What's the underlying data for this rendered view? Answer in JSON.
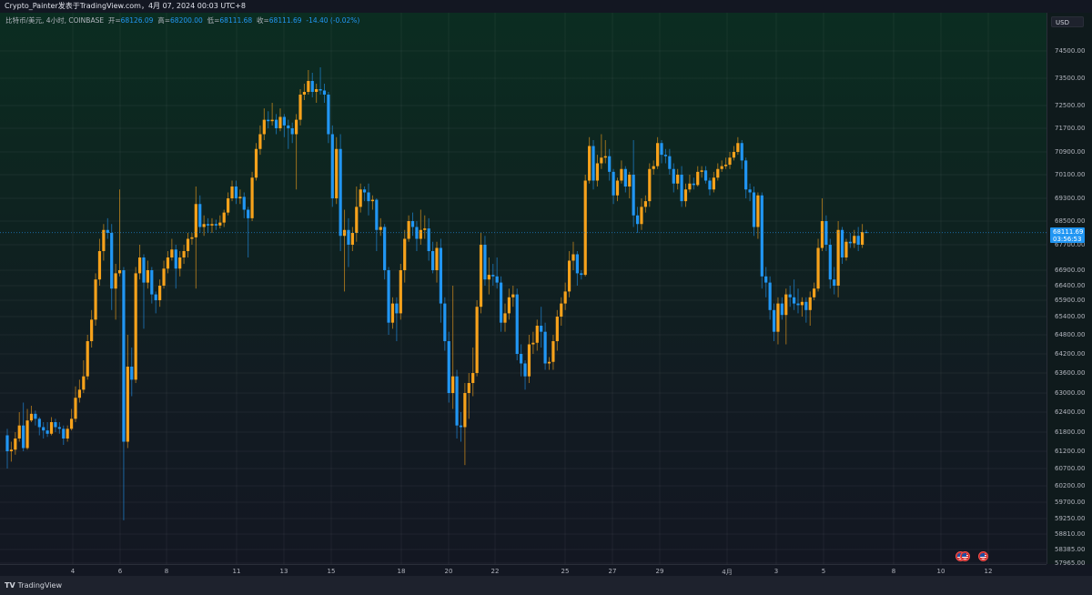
{
  "header": {
    "title": "Crypto_Painter发表于TradingView.com，4月 07, 2024 00:03 UTC+8"
  },
  "legend": {
    "symbol": "比特币/美元, 4小时, COINBASE",
    "open_label": "开=",
    "open": "68126.09",
    "high_label": "高=",
    "high": "68200.00",
    "low_label": "低=",
    "low": "68111.68",
    "close_label": "收=",
    "close": "68111.69",
    "change": "-14.40 (-0.02%)"
  },
  "price_axis": {
    "currency": "USD",
    "ticks": [
      "74500.00",
      "73500.00",
      "72500.00",
      "71700.00",
      "70900.00",
      "70100.00",
      "69300.00",
      "68500.00",
      "67700.00",
      "66900.00",
      "66400.00",
      "65900.00",
      "65400.00",
      "64800.00",
      "64200.00",
      "63600.00",
      "63000.00",
      "62400.00",
      "61800.00",
      "61200.00",
      "60700.00",
      "60200.00",
      "59700.00",
      "59250.00",
      "58810.00",
      "58385.00",
      "57965.00"
    ],
    "last_price": "68111.69",
    "countdown": "03:56:53"
  },
  "time_axis": {
    "ticks": [
      "4",
      "6",
      "8",
      "11",
      "13",
      "15",
      "18",
      "20",
      "22",
      "25",
      "27",
      "29",
      "4月",
      "3",
      "5",
      "8",
      "10",
      "12"
    ]
  },
  "events": [
    {
      "icon": "us-flag-icon"
    },
    {
      "icon": "us-flag-icon"
    }
  ],
  "footer": {
    "logo_mark": "TV",
    "logo_text": "TradingView"
  },
  "colors": {
    "up": "#f7a21b",
    "down": "#2196f3",
    "last_price": "#2196f3"
  },
  "chart_data": {
    "type": "candlestick",
    "interval": "4小时",
    "price_scale": "log-like",
    "grid": true,
    "candle_format": [
      "open",
      "high",
      "low",
      "close"
    ],
    "candles": [
      [
        61700,
        61900,
        60700,
        61200
      ],
      [
        61200,
        61500,
        60900,
        61250
      ],
      [
        61250,
        61800,
        61100,
        61600
      ],
      [
        61600,
        62400,
        61500,
        62000
      ],
      [
        62000,
        62700,
        61200,
        61300
      ],
      [
        61300,
        62500,
        61250,
        62150
      ],
      [
        62150,
        62600,
        62100,
        62350
      ],
      [
        62350,
        62450,
        62000,
        62200
      ],
      [
        62200,
        62250,
        61700,
        61950
      ],
      [
        61950,
        62100,
        61600,
        61850
      ],
      [
        61850,
        62100,
        61650,
        61750
      ],
      [
        61750,
        62250,
        61700,
        62100
      ],
      [
        62100,
        62200,
        61800,
        61950
      ],
      [
        61950,
        62100,
        61750,
        61900
      ],
      [
        61900,
        62000,
        61400,
        61600
      ],
      [
        61600,
        62000,
        61500,
        61900
      ],
      [
        61900,
        62500,
        61850,
        62200
      ],
      [
        62200,
        63200,
        62100,
        62850
      ],
      [
        62850,
        63400,
        62700,
        63100
      ],
      [
        63100,
        64000,
        63000,
        63500
      ],
      [
        63500,
        64800,
        63400,
        64600
      ],
      [
        64600,
        65600,
        64400,
        65300
      ],
      [
        65300,
        66800,
        65100,
        66600
      ],
      [
        66600,
        67900,
        66400,
        67500
      ],
      [
        67500,
        68400,
        67200,
        68200
      ],
      [
        68200,
        68600,
        67900,
        68100
      ],
      [
        68100,
        68400,
        65600,
        66300
      ],
      [
        66300,
        67100,
        65300,
        66800
      ],
      [
        66800,
        69600,
        66700,
        66900
      ],
      [
        66900,
        67000,
        59200,
        61500
      ],
      [
        61500,
        64800,
        61300,
        63800
      ],
      [
        63800,
        64400,
        62900,
        63400
      ],
      [
        63400,
        67000,
        63300,
        66800
      ],
      [
        66800,
        67700,
        66600,
        67300
      ],
      [
        67300,
        67400,
        65000,
        66500
      ],
      [
        66500,
        67200,
        66300,
        66900
      ],
      [
        66900,
        67000,
        65800,
        66100
      ],
      [
        66100,
        66200,
        65500,
        65900
      ],
      [
        65900,
        66600,
        65700,
        66400
      ],
      [
        66400,
        67200,
        66300,
        66950
      ],
      [
        66950,
        67500,
        66800,
        67300
      ],
      [
        67300,
        67900,
        67200,
        67550
      ],
      [
        67550,
        67700,
        66300,
        66950
      ],
      [
        66950,
        67500,
        66700,
        67300
      ],
      [
        67300,
        67700,
        67100,
        67500
      ],
      [
        67500,
        68100,
        67300,
        67900
      ],
      [
        67900,
        68100,
        67700,
        67950
      ],
      [
        67950,
        69700,
        66300,
        69100
      ],
      [
        69100,
        69400,
        68100,
        68300
      ],
      [
        68300,
        68700,
        68000,
        68400
      ],
      [
        68400,
        68600,
        68100,
        68350
      ],
      [
        68350,
        68600,
        68100,
        68400
      ],
      [
        68400,
        68550,
        68200,
        68350
      ],
      [
        68350,
        68700,
        68250,
        68450
      ],
      [
        68450,
        68900,
        68300,
        68800
      ],
      [
        68800,
        69500,
        68700,
        69300
      ],
      [
        69300,
        69900,
        69200,
        69700
      ],
      [
        69700,
        69900,
        69100,
        69300
      ],
      [
        69300,
        69600,
        69100,
        69350
      ],
      [
        69350,
        69500,
        68600,
        68900
      ],
      [
        68900,
        69000,
        67300,
        68600
      ],
      [
        68600,
        70200,
        68500,
        70000
      ],
      [
        70000,
        71200,
        69900,
        71000
      ],
      [
        71000,
        71800,
        70800,
        71500
      ],
      [
        71500,
        72400,
        71300,
        72000
      ],
      [
        72000,
        72300,
        71700,
        71950
      ],
      [
        71950,
        72600,
        71800,
        72000
      ],
      [
        72000,
        72200,
        71500,
        71700
      ],
      [
        71700,
        72400,
        71600,
        72100
      ],
      [
        72100,
        72200,
        71400,
        71800
      ],
      [
        71800,
        72000,
        71000,
        71700
      ],
      [
        71700,
        71900,
        71200,
        71500
      ],
      [
        71500,
        72200,
        69600,
        72000
      ],
      [
        72000,
        73100,
        71800,
        72900
      ],
      [
        72900,
        73300,
        72700,
        73000
      ],
      [
        73000,
        73800,
        72900,
        73400
      ],
      [
        73400,
        73700,
        72800,
        73000
      ],
      [
        73000,
        73300,
        72600,
        73100
      ],
      [
        73100,
        73900,
        72900,
        73050
      ],
      [
        73050,
        73300,
        72600,
        72900
      ],
      [
        72900,
        73000,
        71200,
        71500
      ],
      [
        71500,
        71800,
        69000,
        69300
      ],
      [
        69300,
        71400,
        69100,
        71000
      ],
      [
        71000,
        71500,
        67500,
        68000
      ],
      [
        68000,
        68900,
        66200,
        68200
      ],
      [
        68200,
        68600,
        67000,
        67700
      ],
      [
        67700,
        68300,
        67500,
        68100
      ],
      [
        68100,
        69700,
        67800,
        69000
      ],
      [
        69000,
        69800,
        68800,
        69600
      ],
      [
        69600,
        69700,
        69200,
        69500
      ],
      [
        69500,
        69800,
        68700,
        69200
      ],
      [
        69200,
        69400,
        68900,
        69250
      ],
      [
        69250,
        69300,
        67500,
        68200
      ],
      [
        68200,
        68600,
        68000,
        68300
      ],
      [
        68300,
        68400,
        66600,
        66900
      ],
      [
        66900,
        67000,
        64800,
        65200
      ],
      [
        65200,
        66000,
        65000,
        65800
      ],
      [
        65800,
        66000,
        64600,
        65500
      ],
      [
        65500,
        67100,
        65300,
        66900
      ],
      [
        66900,
        68200,
        66500,
        67900
      ],
      [
        67900,
        68700,
        67800,
        68500
      ],
      [
        68500,
        68800,
        68000,
        68300
      ],
      [
        68300,
        68500,
        67500,
        67900
      ],
      [
        67900,
        68900,
        67700,
        68200
      ],
      [
        68200,
        68700,
        67900,
        68250
      ],
      [
        68250,
        68600,
        67200,
        67500
      ],
      [
        67500,
        67800,
        66800,
        66900
      ],
      [
        66900,
        67800,
        66500,
        67600
      ],
      [
        67600,
        67900,
        65200,
        65800
      ],
      [
        65800,
        66000,
        64300,
        64600
      ],
      [
        64600,
        64900,
        62700,
        63000
      ],
      [
        63000,
        66400,
        62500,
        63500
      ],
      [
        63500,
        63700,
        61600,
        62000
      ],
      [
        62000,
        62400,
        61500,
        61950
      ],
      [
        61950,
        63300,
        60800,
        63000
      ],
      [
        63000,
        63600,
        62200,
        63300
      ],
      [
        63300,
        64400,
        62900,
        63600
      ],
      [
        63600,
        65900,
        63500,
        65700
      ],
      [
        65700,
        68100,
        65500,
        67700
      ],
      [
        67700,
        68000,
        66400,
        66600
      ],
      [
        66600,
        67300,
        66100,
        66750
      ],
      [
        66750,
        67100,
        66400,
        66700
      ],
      [
        66700,
        67300,
        66300,
        66500
      ],
      [
        66500,
        66700,
        64900,
        65200
      ],
      [
        65200,
        65800,
        64900,
        65500
      ],
      [
        65500,
        66300,
        65300,
        66000
      ],
      [
        66000,
        66400,
        65700,
        66100
      ],
      [
        66100,
        66300,
        64000,
        64200
      ],
      [
        64200,
        64500,
        63500,
        63900
      ],
      [
        63900,
        64000,
        63100,
        63500
      ],
      [
        63500,
        64800,
        63300,
        64500
      ],
      [
        64500,
        64900,
        64200,
        64550
      ],
      [
        64550,
        65300,
        64300,
        65100
      ],
      [
        65100,
        65700,
        64400,
        64900
      ],
      [
        64900,
        65200,
        63700,
        63900
      ],
      [
        63900,
        64100,
        63700,
        63950
      ],
      [
        63950,
        64800,
        63700,
        64600
      ],
      [
        64600,
        65600,
        64300,
        65400
      ],
      [
        65400,
        66000,
        65100,
        65800
      ],
      [
        65800,
        66500,
        65600,
        66200
      ],
      [
        66200,
        67500,
        66000,
        67200
      ],
      [
        67200,
        67800,
        66900,
        67400
      ],
      [
        67400,
        67500,
        66400,
        66800
      ],
      [
        66800,
        66900,
        66600,
        66750
      ],
      [
        66750,
        70100,
        66700,
        69900
      ],
      [
        69900,
        71400,
        69800,
        71100
      ],
      [
        71100,
        71300,
        69600,
        69900
      ],
      [
        69900,
        70800,
        69700,
        70500
      ],
      [
        70500,
        71500,
        70300,
        70700
      ],
      [
        70700,
        71300,
        70500,
        70750
      ],
      [
        70750,
        71000,
        69900,
        70200
      ],
      [
        70200,
        70300,
        69100,
        69400
      ],
      [
        69400,
        70000,
        69200,
        69900
      ],
      [
        69900,
        70600,
        69800,
        70300
      ],
      [
        70300,
        70400,
        69500,
        69700
      ],
      [
        69700,
        70200,
        69300,
        70100
      ],
      [
        70100,
        71300,
        68300,
        68700
      ],
      [
        68700,
        69000,
        68100,
        68400
      ],
      [
        68400,
        69300,
        68200,
        69000
      ],
      [
        69000,
        69400,
        68800,
        69200
      ],
      [
        69200,
        70500,
        69000,
        70300
      ],
      [
        70300,
        70600,
        70100,
        70400
      ],
      [
        70400,
        71400,
        70300,
        71200
      ],
      [
        71200,
        71300,
        70500,
        70800
      ],
      [
        70800,
        71000,
        70500,
        70750
      ],
      [
        70750,
        71000,
        70100,
        70300
      ],
      [
        70300,
        70500,
        69500,
        69800
      ],
      [
        69800,
        70300,
        69600,
        70100
      ],
      [
        70100,
        70400,
        69000,
        69200
      ],
      [
        69200,
        69800,
        69000,
        69600
      ],
      [
        69600,
        70100,
        69500,
        69800
      ],
      [
        69800,
        70000,
        69600,
        69750
      ],
      [
        69750,
        70400,
        69700,
        70200
      ],
      [
        70200,
        70400,
        70000,
        70250
      ],
      [
        70250,
        70400,
        69800,
        69900
      ],
      [
        69900,
        70000,
        69400,
        69600
      ],
      [
        69600,
        70200,
        69500,
        70000
      ],
      [
        70000,
        70500,
        69900,
        70300
      ],
      [
        70300,
        70600,
        70200,
        70400
      ],
      [
        70400,
        70700,
        70300,
        70450
      ],
      [
        70450,
        70900,
        70300,
        70700
      ],
      [
        70700,
        71100,
        70600,
        70900
      ],
      [
        70900,
        71400,
        70800,
        71200
      ],
      [
        71200,
        71300,
        70300,
        70600
      ],
      [
        70600,
        70700,
        69300,
        69600
      ],
      [
        69600,
        69800,
        69200,
        69500
      ],
      [
        69500,
        69700,
        68000,
        68300
      ],
      [
        68300,
        69500,
        67900,
        69400
      ],
      [
        69400,
        69500,
        66300,
        66700
      ],
      [
        66700,
        67000,
        66000,
        66500
      ],
      [
        66500,
        66700,
        65300,
        65600
      ],
      [
        65600,
        65800,
        64600,
        64900
      ],
      [
        64900,
        66000,
        64500,
        65800
      ],
      [
        65800,
        66000,
        65300,
        65450
      ],
      [
        65450,
        66300,
        64500,
        66100
      ],
      [
        66100,
        66400,
        65700,
        66000
      ],
      [
        66000,
        66600,
        65600,
        65800
      ],
      [
        65800,
        66300,
        65500,
        65750
      ],
      [
        65750,
        66000,
        65400,
        65850
      ],
      [
        65850,
        66000,
        65200,
        65600
      ],
      [
        65600,
        66200,
        65100,
        66000
      ],
      [
        66000,
        66500,
        65900,
        66300
      ],
      [
        66300,
        67900,
        66200,
        67600
      ],
      [
        67600,
        69300,
        67500,
        68500
      ],
      [
        68500,
        68700,
        67500,
        67700
      ],
      [
        67700,
        67900,
        66300,
        66600
      ],
      [
        66600,
        67000,
        66100,
        66400
      ],
      [
        66400,
        68500,
        66000,
        68200
      ],
      [
        68200,
        68300,
        67100,
        67300
      ],
      [
        67300,
        67900,
        67200,
        67800
      ],
      [
        67800,
        68100,
        67600,
        67750
      ],
      [
        67750,
        68200,
        67600,
        68000
      ],
      [
        68000,
        68300,
        67500,
        67700
      ],
      [
        67700,
        68400,
        67600,
        68126.09
      ],
      [
        68126.09,
        68200,
        68111.68,
        68111.69
      ]
    ]
  }
}
